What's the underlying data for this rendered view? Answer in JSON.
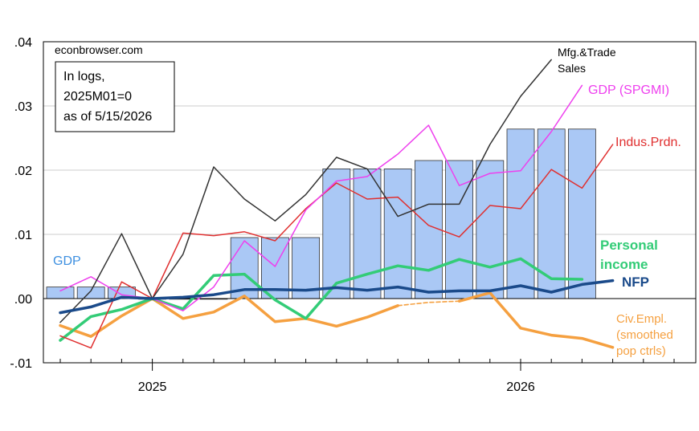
{
  "chart_data": {
    "type": "line",
    "watermark": "econbrowser.com",
    "note_lines": [
      "In logs,",
      "2025M01=0",
      "as of 5/15/2026"
    ],
    "x_tick_labels": [
      "2025",
      "2026"
    ],
    "y_tick_labels": [
      ".04",
      ".03",
      ".02",
      ".01",
      ".00",
      "-.01"
    ],
    "ylim": [
      -0.01,
      0.04
    ],
    "grid": true,
    "colors": {
      "gdp": "#aac8f5",
      "gdp_label": "#3d8fe0",
      "mfg": "#333333",
      "spgmi": "#ee40ee",
      "indus": "#e03030",
      "personal_income": "#33cc77",
      "nfp": "#1a4a8a",
      "civ_empl": "#f5a040"
    },
    "gdp_bars": {
      "name": "GDP",
      "values": [
        0.0018,
        0.0018,
        0.0018,
        -0.0001,
        -0.0001,
        -0.0001,
        0.0095,
        0.0095,
        0.0095,
        0.0202,
        0.0202,
        0.0202,
        0.0215,
        0.0215,
        0.0215,
        0.0264,
        0.0264,
        0.0264
      ]
    },
    "series": [
      {
        "key": "mfg",
        "name_lines": [
          "Mfg.&Trade",
          "Sales"
        ],
        "values": [
          -0.0037,
          0.0012,
          0.0101,
          0.0,
          0.0069,
          0.0205,
          0.0155,
          0.0121,
          0.0162,
          0.022,
          0.0202,
          0.0128,
          0.0147,
          0.0147,
          0.024,
          0.0315,
          0.0372
        ]
      },
      {
        "key": "spgmi",
        "name_lines": [
          "GDP (SPGMI)"
        ],
        "values": [
          0.0012,
          0.0034,
          0.0006,
          0.0,
          -0.0019,
          0.0018,
          0.009,
          0.005,
          0.0138,
          0.0183,
          0.019,
          0.0225,
          0.027,
          0.0176,
          0.0195,
          0.0199,
          0.026,
          0.0332
        ]
      },
      {
        "key": "indus",
        "name_lines": [
          "Indus.Prdn."
        ],
        "values": [
          -0.0058,
          -0.0077,
          0.0026,
          0.0,
          0.0102,
          0.0098,
          0.0104,
          0.009,
          0.014,
          0.018,
          0.0155,
          0.0158,
          0.0114,
          0.0096,
          0.0145,
          0.014,
          0.0201,
          0.0172,
          0.024
        ]
      },
      {
        "key": "personal_income",
        "name_lines": [
          "Personal",
          "income"
        ],
        "values": [
          -0.0065,
          -0.0028,
          -0.0017,
          0.0,
          -0.0016,
          0.0036,
          0.0038,
          -0.0002,
          -0.0031,
          0.0024,
          0.0038,
          0.0051,
          0.0044,
          0.0061,
          0.0049,
          0.0062,
          0.0031,
          0.003
        ]
      },
      {
        "key": "nfp",
        "name_lines": [
          "NFP"
        ],
        "values": [
          -0.0022,
          -0.0013,
          0.0002,
          0.0,
          0.0002,
          0.0006,
          0.0014,
          0.0014,
          0.0013,
          0.0017,
          0.0013,
          0.0018,
          0.001,
          0.0012,
          0.0012,
          0.002,
          0.001,
          0.0022,
          0.0028
        ]
      },
      {
        "key": "civ_empl",
        "name_lines": [
          "Civ.Empl.",
          "(smoothed",
          "pop ctrls)"
        ],
        "values": [
          -0.0042,
          -0.0059,
          -0.0027,
          0.0,
          -0.0031,
          -0.0021,
          0.0004,
          -0.0036,
          -0.0031,
          -0.0043,
          -0.0029,
          -0.0011,
          -0.0006,
          -0.0004,
          0.0009,
          -0.0046,
          -0.0057,
          -0.0062,
          -0.0076
        ],
        "dashed_segments": [
          [
            11,
            13
          ]
        ]
      }
    ]
  }
}
